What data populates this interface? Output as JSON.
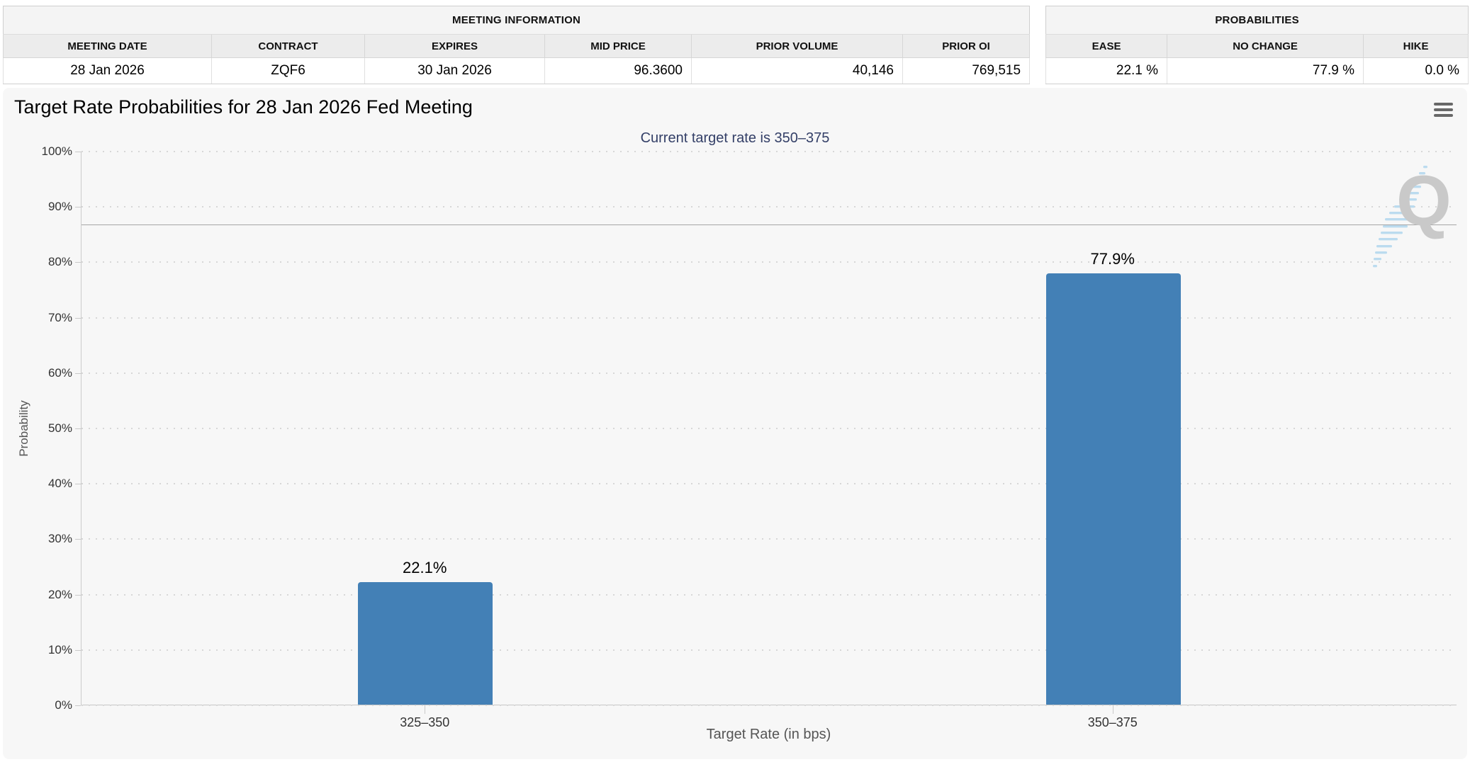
{
  "meeting_information": {
    "title": "MEETING INFORMATION",
    "columns": [
      "MEETING DATE",
      "CONTRACT",
      "EXPIRES",
      "MID PRICE",
      "PRIOR VOLUME",
      "PRIOR OI"
    ],
    "values": [
      "28 Jan 2026",
      "ZQF6",
      "30 Jan 2026",
      "96.3600",
      "40,146",
      "769,515"
    ]
  },
  "probabilities": {
    "title": "PROBABILITIES",
    "columns": [
      "EASE",
      "NO CHANGE",
      "HIKE"
    ],
    "values": [
      "22.1 %",
      "77.9 %",
      "0.0 %"
    ]
  },
  "chart": {
    "menu_icon": "hamburger-icon",
    "watermark_letter": "Q"
  },
  "chart_data": {
    "type": "bar",
    "title": "Target Rate Probabilities for 28 Jan 2026 Fed Meeting",
    "subtitle": "Current target rate is 350–375",
    "xlabel": "Target Rate (in bps)",
    "ylabel": "Probability",
    "categories": [
      "325–350",
      "350–375"
    ],
    "series": [
      {
        "name": "Probability",
        "values": [
          22.1,
          77.9
        ]
      }
    ],
    "data_labels": [
      "22.1%",
      "77.9%"
    ],
    "ylim": [
      0,
      100
    ],
    "ytick_labels": [
      "0%",
      "10%",
      "20%",
      "30%",
      "40%",
      "50%",
      "60%",
      "70%",
      "80%",
      "90%",
      "100%"
    ],
    "ytick_values": [
      0,
      10,
      20,
      30,
      40,
      50,
      60,
      70,
      80,
      90,
      100
    ],
    "grid": "dotted-horizontal",
    "legend": "none",
    "reference_line_y": 86.8,
    "bar_color": "#4380B6",
    "background_color": "#f7f7f7"
  }
}
